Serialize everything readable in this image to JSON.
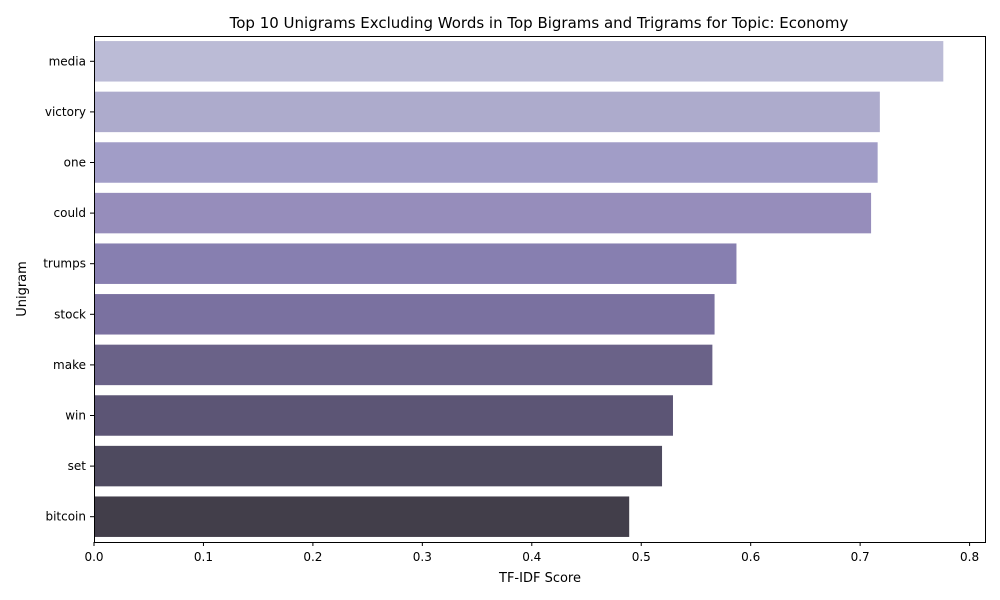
{
  "chart_data": {
    "type": "bar",
    "orientation": "horizontal",
    "title": "Top 10 Unigrams Excluding Words in Top Bigrams and Trigrams for Topic: Economy",
    "xlabel": "TF-IDF Score",
    "ylabel": "Unigram",
    "categories": [
      "media",
      "victory",
      "one",
      "could",
      "trumps",
      "stock",
      "make",
      "win",
      "set",
      "bitcoin"
    ],
    "values": [
      0.776,
      0.718,
      0.716,
      0.71,
      0.587,
      0.567,
      0.565,
      0.529,
      0.519,
      0.489
    ],
    "colors": [
      "#bbbbd6",
      "#adabcc",
      "#a19dc7",
      "#968dbb",
      "#877fb0",
      "#7a71a0",
      "#6a6288",
      "#5c5575",
      "#4e4a5f",
      "#423e4a"
    ],
    "xlim": [
      0,
      0.815
    ],
    "xticks": [
      "0.0",
      "0.1",
      "0.2",
      "0.3",
      "0.4",
      "0.5",
      "0.6",
      "0.7",
      "0.8"
    ],
    "grid": false,
    "legend": "none"
  }
}
